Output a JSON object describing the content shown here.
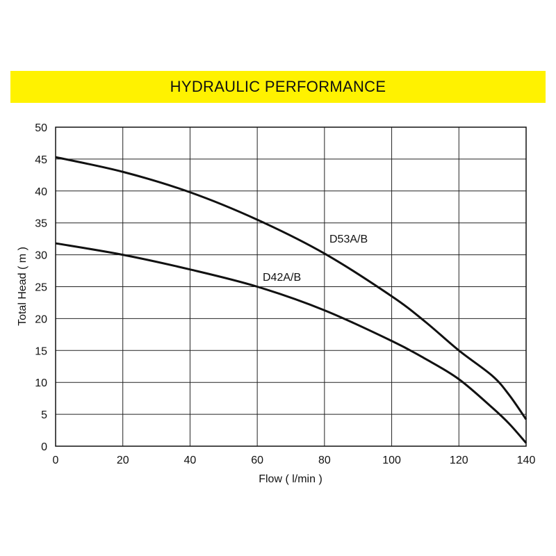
{
  "banner": {
    "title": "HYDRAULIC PERFORMANCE",
    "color": "#fff200"
  },
  "chart_data": {
    "type": "line",
    "title": "HYDRAULIC PERFORMANCE",
    "xlabel": "Flow ( l/min )",
    "ylabel": "Total Head ( m )",
    "xlim": [
      0,
      140
    ],
    "ylim": [
      0,
      50
    ],
    "xticks": [
      0,
      20,
      40,
      60,
      80,
      100,
      120,
      140
    ],
    "yticks": [
      0,
      5,
      10,
      15,
      20,
      25,
      30,
      35,
      40,
      45,
      50
    ],
    "grid": true,
    "series": [
      {
        "name": "D53A/B",
        "x": [
          0,
          20,
          40,
          60,
          80,
          100,
          110,
          120,
          130,
          135,
          140
        ],
        "y": [
          45.3,
          43,
          39.8,
          35.5,
          30.2,
          23.5,
          19.5,
          15,
          11,
          8,
          4.2
        ]
      },
      {
        "name": "D42A/B",
        "x": [
          0,
          20,
          40,
          60,
          80,
          100,
          110,
          120,
          130,
          135,
          140
        ],
        "y": [
          31.8,
          30,
          27.7,
          25,
          21.3,
          16.5,
          13.7,
          10.5,
          6,
          3.5,
          0.5
        ]
      }
    ]
  }
}
